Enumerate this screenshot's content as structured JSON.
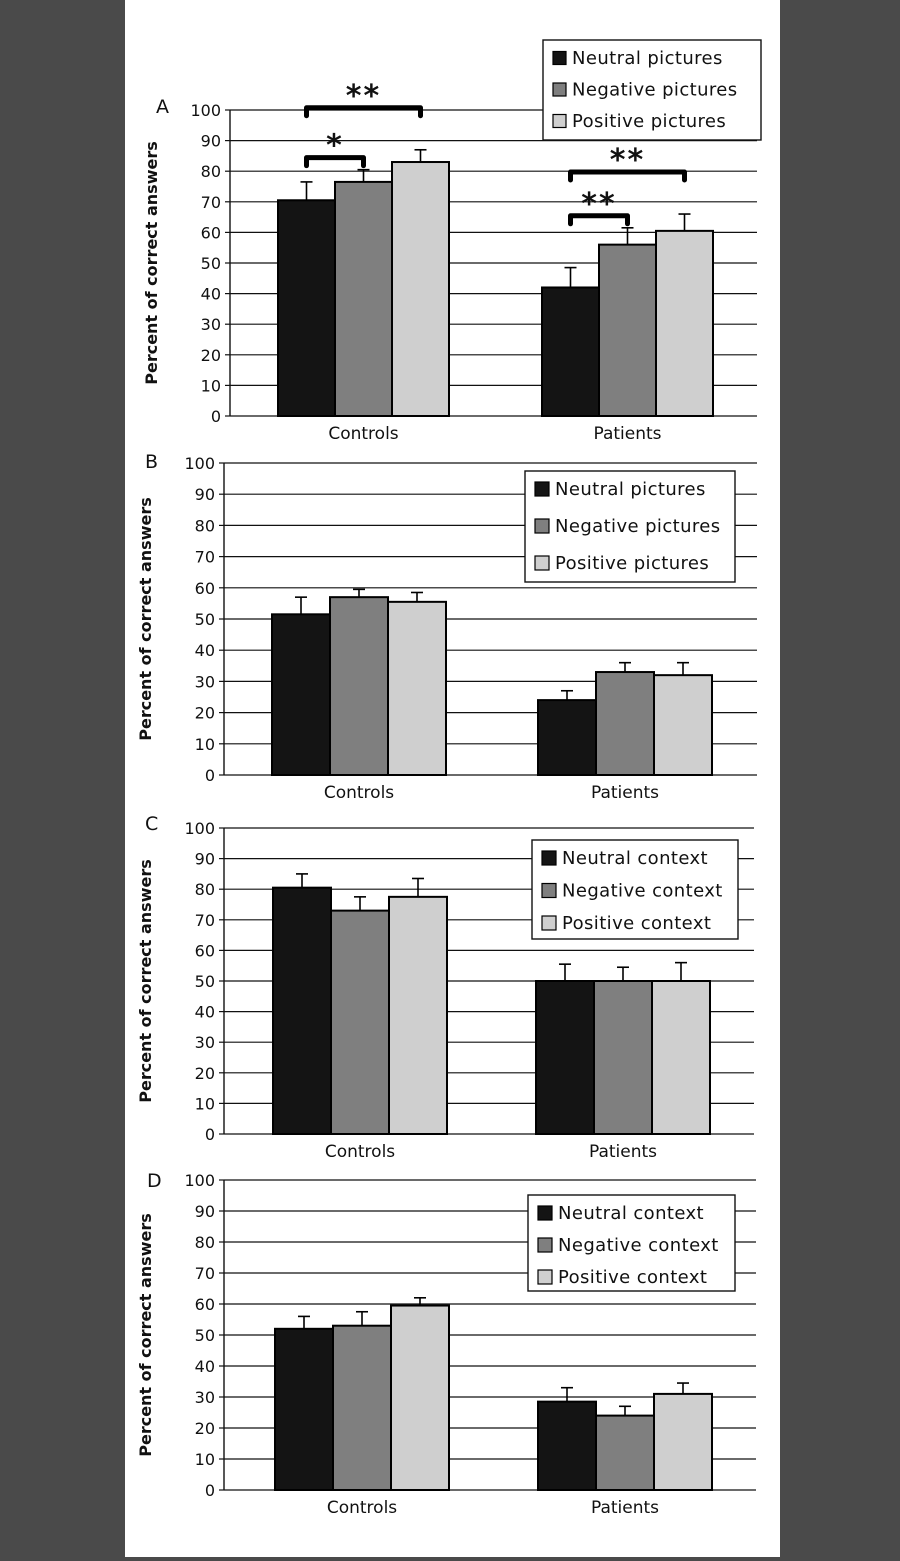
{
  "colors": {
    "neutral": "#141414",
    "negative": "#7f7f7f",
    "positive": "#cfcfcf",
    "grid": "#111111",
    "page_margin": "#4a4a4a"
  },
  "chart_data": [
    {
      "panel": "A",
      "type": "bar",
      "categories": [
        "Controls",
        "Patients"
      ],
      "ylabel": "Percent of correct answers",
      "ylim": [
        0,
        100
      ],
      "yticks": [
        "0",
        "10",
        "20",
        "30",
        "40",
        "50",
        "60",
        "70",
        "80",
        "90",
        "100"
      ],
      "grid": true,
      "legend_position": "top-right",
      "series": [
        {
          "name": "Neutral pictures",
          "color_key": "neutral",
          "values": [
            70.5,
            42
          ],
          "errors": [
            6,
            6.5
          ]
        },
        {
          "name": "Negative pictures",
          "color_key": "negative",
          "values": [
            76.5,
            56
          ],
          "errors": [
            4,
            5.5
          ]
        },
        {
          "name": "Positive pictures",
          "color_key": "positive",
          "values": [
            83,
            60.5
          ],
          "errors": [
            4,
            5.5
          ]
        }
      ],
      "significance": [
        {
          "category": "Controls",
          "from_series": 0,
          "to_series": 1,
          "label": "*"
        },
        {
          "category": "Controls",
          "from_series": 0,
          "to_series": 2,
          "label": "**"
        },
        {
          "category": "Patients",
          "from_series": 0,
          "to_series": 1,
          "label": "**"
        },
        {
          "category": "Patients",
          "from_series": 0,
          "to_series": 2,
          "label": "**"
        }
      ]
    },
    {
      "panel": "B",
      "type": "bar",
      "categories": [
        "Controls",
        "Patients"
      ],
      "ylabel": "Percent of correct answers",
      "ylim": [
        0,
        100
      ],
      "yticks": [
        "0",
        "10",
        "20",
        "30",
        "40",
        "50",
        "60",
        "70",
        "80",
        "90",
        "100"
      ],
      "grid": true,
      "legend_position": "top-right",
      "series": [
        {
          "name": "Neutral pictures",
          "color_key": "neutral",
          "values": [
            51.5,
            24
          ],
          "errors": [
            5.5,
            3
          ]
        },
        {
          "name": "Negative pictures",
          "color_key": "negative",
          "values": [
            57,
            33
          ],
          "errors": [
            2.5,
            3
          ]
        },
        {
          "name": "Positive pictures",
          "color_key": "positive",
          "values": [
            55.5,
            32
          ],
          "errors": [
            3,
            4
          ]
        }
      ],
      "significance": []
    },
    {
      "panel": "C",
      "type": "bar",
      "categories": [
        "Controls",
        "Patients"
      ],
      "ylabel": "Percent of correct answers",
      "ylim": [
        0,
        100
      ],
      "yticks": [
        "0",
        "10",
        "20",
        "30",
        "40",
        "50",
        "60",
        "70",
        "80",
        "90",
        "100"
      ],
      "grid": true,
      "legend_position": "top-right",
      "series": [
        {
          "name": "Neutral context",
          "color_key": "neutral",
          "values": [
            80.5,
            50
          ],
          "errors": [
            4.5,
            5.5
          ]
        },
        {
          "name": "Negative context",
          "color_key": "negative",
          "values": [
            73,
            50
          ],
          "errors": [
            4.5,
            4.5
          ]
        },
        {
          "name": "Positive context",
          "color_key": "positive",
          "values": [
            77.5,
            50
          ],
          "errors": [
            6,
            6
          ]
        }
      ],
      "significance": []
    },
    {
      "panel": "D",
      "type": "bar",
      "categories": [
        "Controls",
        "Patients"
      ],
      "ylabel": "Percent of correct answers",
      "ylim": [
        0,
        100
      ],
      "yticks": [
        "0",
        "10",
        "20",
        "30",
        "40",
        "50",
        "60",
        "70",
        "80",
        "90",
        "100"
      ],
      "grid": true,
      "legend_position": "top-right",
      "series": [
        {
          "name": "Neutral context",
          "color_key": "neutral",
          "values": [
            52,
            28.5
          ],
          "errors": [
            4,
            4.5
          ]
        },
        {
          "name": "Negative context",
          "color_key": "negative",
          "values": [
            53,
            24
          ],
          "errors": [
            4.5,
            3
          ]
        },
        {
          "name": "Positive context",
          "color_key": "positive",
          "values": [
            59.5,
            31
          ],
          "errors": [
            2.5,
            3.5
          ]
        }
      ],
      "significance": []
    }
  ]
}
